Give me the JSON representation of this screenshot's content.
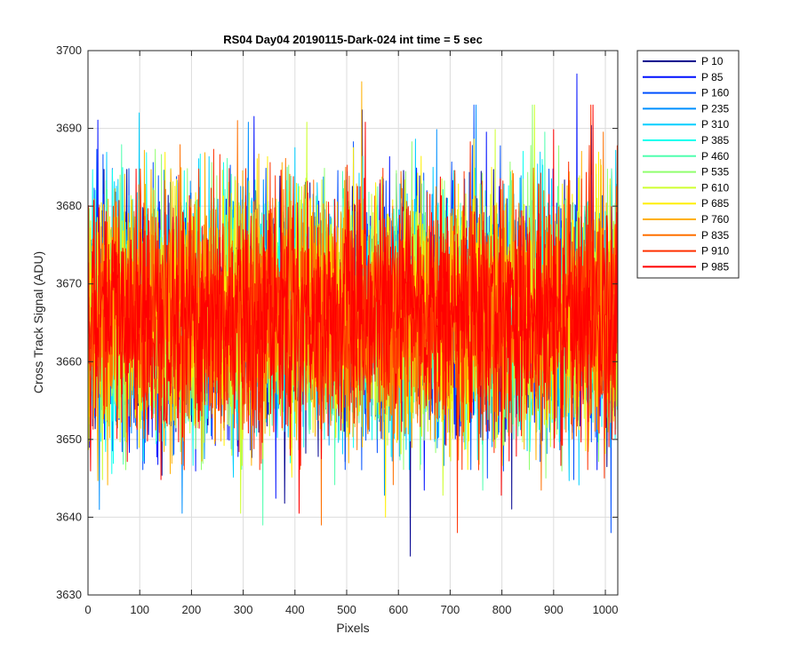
{
  "chart_data": {
    "type": "line",
    "title": "RS04 Day04 20190115-Dark-024 int time = 5 sec",
    "xlabel": "Pixels",
    "ylabel": "Cross Track Signal (ADU)",
    "xlim": [
      0,
      1024
    ],
    "ylim": [
      3630,
      3700
    ],
    "xticks": [
      0,
      100,
      200,
      300,
      400,
      500,
      600,
      700,
      800,
      900,
      1000
    ],
    "yticks": [
      3630,
      3640,
      3650,
      3660,
      3670,
      3680,
      3690,
      3700
    ],
    "xtick_labels": [
      "0",
      "100",
      "200",
      "300",
      "400",
      "500",
      "600",
      "700",
      "800",
      "900",
      "1000"
    ],
    "ytick_labels": [
      "3630",
      "3640",
      "3650",
      "3660",
      "3670",
      "3680",
      "3690",
      "3700"
    ],
    "grid": true,
    "legend_position": "outside-top-right",
    "noise_model": {
      "n_points": 1024,
      "mean": 3666,
      "typical_range": [
        3651,
        3681
      ],
      "notes_max": 3697,
      "notes_min": 3635
    },
    "series": [
      {
        "name": "P 10",
        "color": "#00008F"
      },
      {
        "name": "P 85",
        "color": "#0010FF"
      },
      {
        "name": "P 160",
        "color": "#0050FF"
      },
      {
        "name": "P 235",
        "color": "#0090FF"
      },
      {
        "name": "P 310",
        "color": "#00CFFF"
      },
      {
        "name": "P 385",
        "color": "#10FFEF"
      },
      {
        "name": "P 460",
        "color": "#50FFAF"
      },
      {
        "name": "P 535",
        "color": "#90FF6F"
      },
      {
        "name": "P 610",
        "color": "#CFFF30"
      },
      {
        "name": "P 685",
        "color": "#FFEF00"
      },
      {
        "name": "P 760",
        "color": "#FFB000"
      },
      {
        "name": "P 835",
        "color": "#FF7000"
      },
      {
        "name": "P 910",
        "color": "#FF3000"
      },
      {
        "name": "P 985",
        "color": "#FF0000"
      }
    ],
    "notable_spikes": [
      {
        "series": "P 85",
        "x": 944,
        "y": 3697
      },
      {
        "series": "P 760",
        "x": 528,
        "y": 3696
      },
      {
        "series": "P 10",
        "x": 622,
        "y": 3635
      },
      {
        "series": "P 910",
        "x": 713,
        "y": 3638
      },
      {
        "series": "P 160",
        "x": 1010,
        "y": 3638
      },
      {
        "series": "P 310",
        "x": 98,
        "y": 3692
      },
      {
        "series": "P 835",
        "x": 288,
        "y": 3691
      },
      {
        "series": "P 685",
        "x": 574,
        "y": 3640
      },
      {
        "series": "P 235",
        "x": 21,
        "y": 3641
      }
    ]
  }
}
